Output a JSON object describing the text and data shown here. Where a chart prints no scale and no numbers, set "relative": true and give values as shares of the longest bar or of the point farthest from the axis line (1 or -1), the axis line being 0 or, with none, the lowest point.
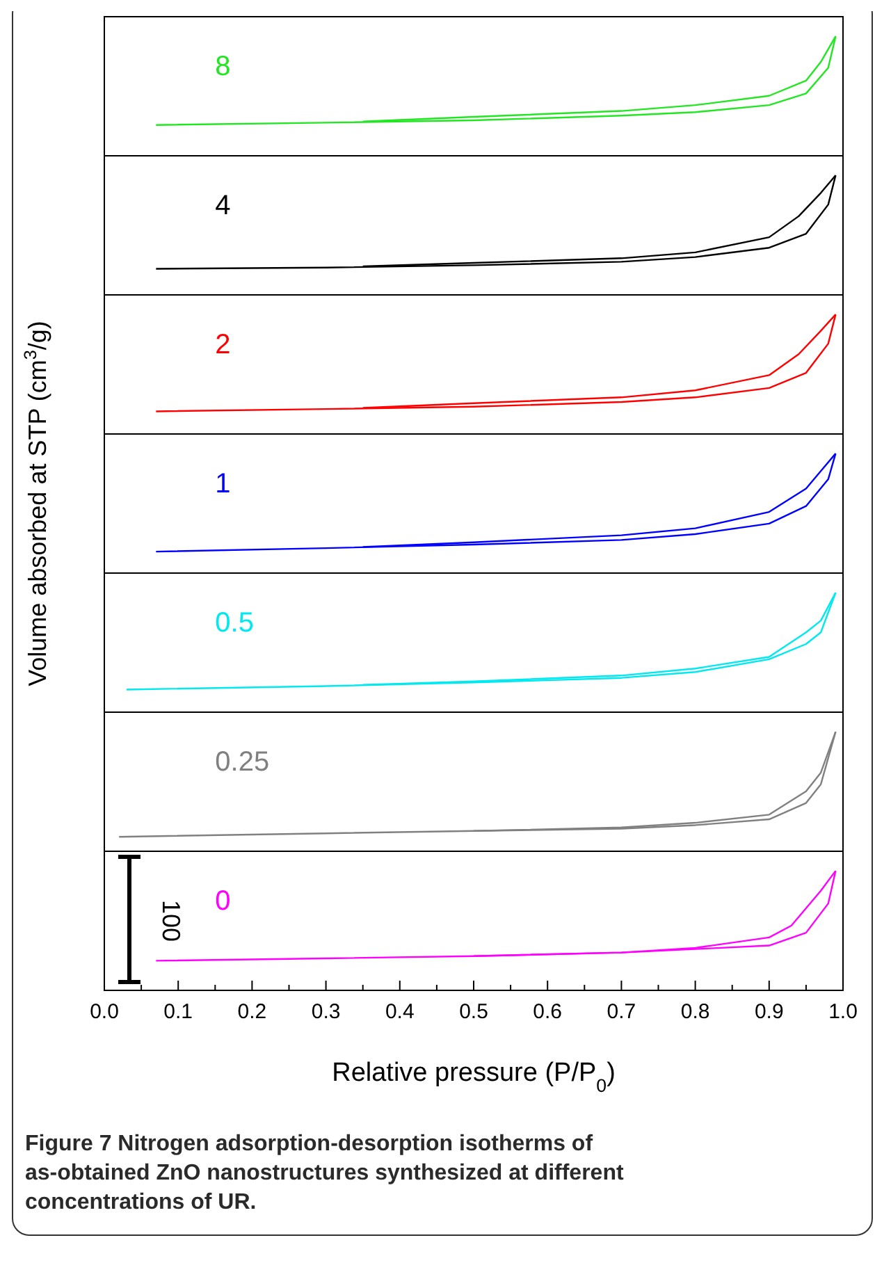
{
  "chart_data": [
    {
      "type": "line",
      "relative": true,
      "xlim": [
        0,
        1
      ],
      "tick_labels": false,
      "series": [
        {
          "name": "8",
          "color": "#22e622",
          "x": [
            0.07,
            0.3,
            0.5,
            0.7,
            0.8,
            0.9,
            0.95,
            0.98,
            0.99
          ],
          "values": [
            0.24,
            0.26,
            0.28,
            0.32,
            0.35,
            0.41,
            0.51,
            0.73,
            1
          ]
        },
        {
          "color": "#22e622",
          "x": [
            0.99,
            0.97,
            0.95,
            0.9,
            0.8,
            0.7,
            0.5,
            0.35
          ],
          "values": [
            1,
            0.78,
            0.62,
            0.49,
            0.41,
            0.36,
            0.31,
            0.27
          ]
        }
      ]
    },
    {
      "type": "line",
      "relative": true,
      "xlim": [
        0,
        1
      ],
      "tick_labels": false,
      "series": [
        {
          "name": "4",
          "color": "#000000",
          "x": [
            0.07,
            0.3,
            0.5,
            0.7,
            0.8,
            0.9,
            0.95,
            0.98,
            0.99
          ],
          "values": [
            0.2,
            0.21,
            0.23,
            0.26,
            0.3,
            0.38,
            0.5,
            0.75,
            1
          ]
        },
        {
          "color": "#000000",
          "x": [
            0.99,
            0.97,
            0.94,
            0.9,
            0.8,
            0.7,
            0.5,
            0.35
          ],
          "values": [
            1,
            0.85,
            0.65,
            0.47,
            0.34,
            0.29,
            0.25,
            0.22
          ]
        }
      ]
    },
    {
      "type": "line",
      "relative": true,
      "xlim": [
        0,
        1
      ],
      "tick_labels": false,
      "series": [
        {
          "name": "2",
          "color": "#ff0000",
          "x": [
            0.07,
            0.3,
            0.5,
            0.7,
            0.8,
            0.9,
            0.95,
            0.98,
            0.99
          ],
          "values": [
            0.17,
            0.19,
            0.21,
            0.25,
            0.29,
            0.37,
            0.5,
            0.75,
            1
          ]
        },
        {
          "color": "#ff0000",
          "x": [
            0.99,
            0.97,
            0.94,
            0.9,
            0.8,
            0.7,
            0.5,
            0.35
          ],
          "values": [
            1,
            0.86,
            0.66,
            0.48,
            0.35,
            0.29,
            0.24,
            0.2
          ]
        }
      ]
    },
    {
      "type": "line",
      "relative": true,
      "ylabel": "Volume absorbed at STP (cm$^{3}$/g)",
      "xlim": [
        0,
        1
      ],
      "tick_labels": false,
      "series": [
        {
          "name": "1",
          "color": "#0000ff",
          "x": [
            0.07,
            0.3,
            0.5,
            0.7,
            0.8,
            0.9,
            0.95,
            0.98,
            0.99
          ],
          "values": [
            0.16,
            0.19,
            0.22,
            0.26,
            0.31,
            0.4,
            0.55,
            0.78,
            1
          ]
        },
        {
          "color": "#0000ff",
          "x": [
            0.99,
            0.97,
            0.95,
            0.9,
            0.8,
            0.7,
            0.5,
            0.35
          ],
          "values": [
            1,
            0.85,
            0.7,
            0.5,
            0.36,
            0.3,
            0.24,
            0.2
          ]
        }
      ]
    },
    {
      "type": "line",
      "relative": true,
      "xlim": [
        0,
        1
      ],
      "tick_labels": false,
      "series": [
        {
          "name": "0.5",
          "color": "#00e8f0",
          "x": [
            0.03,
            0.3,
            0.5,
            0.7,
            0.8,
            0.9,
            0.95,
            0.97,
            0.99
          ],
          "values": [
            0.17,
            0.2,
            0.23,
            0.27,
            0.32,
            0.43,
            0.56,
            0.66,
            1
          ]
        },
        {
          "color": "#00e8f0",
          "x": [
            0.99,
            0.97,
            0.95,
            0.9,
            0.8,
            0.7,
            0.5,
            0.35
          ],
          "values": [
            1,
            0.76,
            0.66,
            0.45,
            0.35,
            0.29,
            0.24,
            0.21
          ]
        }
      ]
    },
    {
      "type": "line",
      "relative": true,
      "xlim": [
        0,
        1
      ],
      "tick_labels": false,
      "series": [
        {
          "name": "0.25",
          "color": "#808080",
          "x": [
            0.02,
            0.3,
            0.5,
            0.7,
            0.8,
            0.9,
            0.95,
            0.97,
            0.99
          ],
          "values": [
            0.1,
            0.13,
            0.15,
            0.17,
            0.2,
            0.25,
            0.39,
            0.55,
            1
          ]
        },
        {
          "color": "#808080",
          "x": [
            0.99,
            0.97,
            0.95,
            0.9,
            0.8,
            0.7,
            0.5
          ],
          "values": [
            1,
            0.65,
            0.49,
            0.29,
            0.22,
            0.18,
            0.15
          ]
        }
      ]
    },
    {
      "type": "line",
      "relative": true,
      "xlabel": "Relative pressure (P/P$_{0}$)",
      "xlim": [
        0,
        1
      ],
      "tick_labels": "x",
      "xticks": [
        {
          "value": 0,
          "label": "0.0"
        },
        {
          "value": 0.05,
          "label": null
        },
        0.1,
        {
          "value": 0.15,
          "label": null
        },
        0.2,
        {
          "value": 0.25,
          "label": null
        },
        0.3,
        {
          "value": 0.35,
          "label": null
        },
        0.4,
        {
          "value": 0.45,
          "label": null
        },
        0.5,
        {
          "value": 0.55,
          "label": null
        },
        0.6,
        {
          "value": 0.65,
          "label": null
        },
        0.7,
        {
          "value": 0.75,
          "label": null
        },
        0.8,
        {
          "value": 0.85,
          "label": null
        },
        0.9,
        {
          "value": 0.95,
          "label": null
        },
        {
          "value": 1,
          "label": "1.0"
        }
      ],
      "annotations": [
        "100",
        "Figure 7 Nitrogen adsorption-desorption isotherms of as-obtained ZnO nanostructures synthesized at different concentrations of UR."
      ],
      "series": [
        {
          "name": "0",
          "color": "#ff00ff",
          "x": [
            0.07,
            0.3,
            0.5,
            0.7,
            0.8,
            0.9,
            0.95,
            0.98,
            0.99
          ],
          "values": [
            0.23,
            0.25,
            0.27,
            0.3,
            0.33,
            0.36,
            0.47,
            0.72,
            1
          ]
        },
        {
          "color": "#ff00ff",
          "x": [
            0.99,
            0.97,
            0.93,
            0.9,
            0.8,
            0.7,
            0.5
          ],
          "values": [
            1,
            0.83,
            0.53,
            0.43,
            0.34,
            0.3,
            0.27
          ]
        }
      ]
    }
  ]
}
